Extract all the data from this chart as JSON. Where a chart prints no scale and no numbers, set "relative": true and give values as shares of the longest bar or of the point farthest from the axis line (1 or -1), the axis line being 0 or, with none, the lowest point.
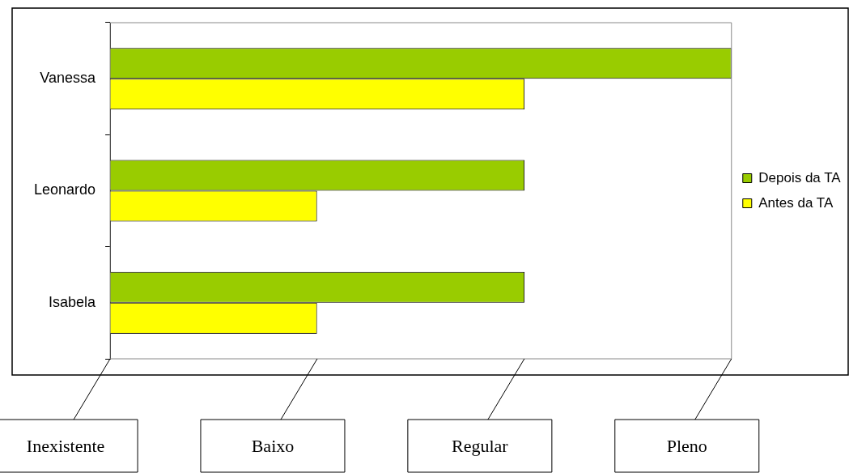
{
  "chart_data": {
    "type": "bar",
    "orientation": "horizontal",
    "relative": true,
    "categories": [
      "Vanessa",
      "Leonardo",
      "Isabela"
    ],
    "series": [
      {
        "name": "Depois da TA",
        "color": "#99cc00",
        "values": [
          1,
          0.667,
          0.667
        ]
      },
      {
        "name": "Antes da TA",
        "color": "#ffff00",
        "values": [
          0.667,
          0.333,
          0.333
        ]
      }
    ],
    "annotations": [
      "Inexistente",
      "Baixo",
      "Regular",
      "Pleno"
    ],
    "grid": false,
    "legend": "right"
  }
}
